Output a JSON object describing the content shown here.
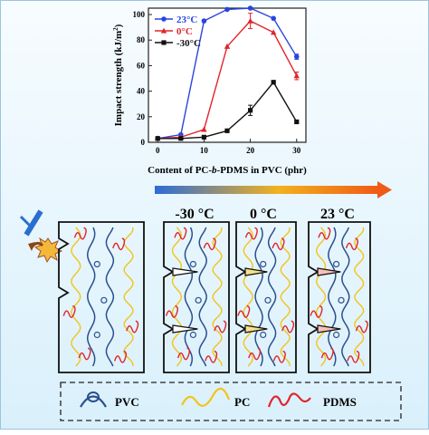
{
  "chart_data": {
    "type": "line",
    "xlabel_parts": [
      "Content of PC-",
      "b",
      "-PDMS in PVC (phr)"
    ],
    "ylabel_text": "Impact strength (kJ/m",
    "ylabel_sup": "2",
    "ylabel_close": ")",
    "x": [
      0,
      5,
      10,
      15,
      20,
      25,
      30
    ],
    "x_ticks": [
      "0",
      "10",
      "20",
      "30"
    ],
    "y_ticks": [
      "0",
      "20",
      "40",
      "60",
      "80",
      "100"
    ],
    "xlim": [
      -2,
      32
    ],
    "ylim": [
      0,
      105
    ],
    "grid": false,
    "legend_position": "top-left",
    "series": [
      {
        "name": "23°C",
        "color": "#2a44e0",
        "marker": "circle",
        "values": [
          3,
          6,
          95,
          104,
          105,
          97,
          67
        ],
        "errors": [
          0,
          0,
          0,
          0,
          0,
          0,
          2
        ]
      },
      {
        "name": "0°C",
        "color": "#e0242c",
        "marker": "triangle",
        "values": [
          3,
          4,
          10,
          75,
          95,
          86,
          52
        ],
        "errors": [
          0,
          0,
          0,
          0,
          6,
          0,
          3
        ]
      },
      {
        "name": "-30°C",
        "color": "#111111",
        "marker": "square",
        "values": [
          3,
          3,
          4,
          9,
          25,
          47,
          16
        ],
        "errors": [
          0,
          0,
          0,
          0,
          4,
          0,
          0
        ]
      }
    ]
  },
  "schematic": {
    "temp_labels": [
      "-30 °C",
      "0 °C",
      "23 °C"
    ],
    "legend": [
      "PVC",
      "PC",
      "PDMS"
    ],
    "colors": {
      "pvc": "#2b4f8c",
      "pc": "#f2c41c",
      "pdms": "#e0242c",
      "arrow_start": "#2b6cd8",
      "arrow_end": "#ef5a16"
    }
  }
}
